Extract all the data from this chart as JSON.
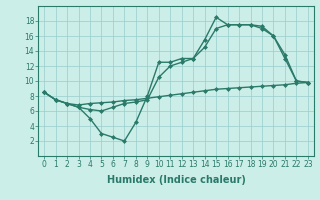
{
  "line1_x": [
    0,
    1,
    2,
    3,
    4,
    5,
    6,
    7,
    8,
    9,
    10,
    11,
    12,
    13,
    14,
    15,
    16,
    17,
    18,
    19,
    20,
    21,
    22,
    23
  ],
  "line1_y": [
    8.5,
    7.5,
    7.0,
    6.5,
    5.0,
    3.0,
    2.5,
    2.0,
    4.5,
    8.0,
    12.5,
    12.5,
    13.0,
    13.0,
    15.5,
    18.5,
    17.5,
    17.5,
    17.5,
    17.0,
    16.0,
    13.0,
    10.0,
    9.8
  ],
  "line2_x": [
    0,
    1,
    2,
    3,
    4,
    5,
    6,
    7,
    8,
    9,
    10,
    11,
    12,
    13,
    14,
    15,
    16,
    17,
    18,
    19,
    20,
    21,
    22,
    23
  ],
  "line2_y": [
    8.5,
    7.5,
    7.0,
    6.5,
    6.2,
    6.0,
    6.5,
    7.0,
    7.2,
    7.5,
    10.5,
    12.0,
    12.5,
    13.0,
    14.5,
    17.0,
    17.5,
    17.5,
    17.5,
    17.3,
    16.0,
    13.5,
    10.0,
    9.8
  ],
  "line3_x": [
    0,
    1,
    2,
    3,
    4,
    5,
    6,
    7,
    8,
    9,
    10,
    11,
    12,
    13,
    14,
    15,
    16,
    17,
    18,
    19,
    20,
    21,
    22,
    23
  ],
  "line3_y": [
    8.5,
    7.5,
    7.0,
    6.8,
    7.0,
    7.1,
    7.2,
    7.4,
    7.5,
    7.7,
    7.9,
    8.1,
    8.3,
    8.5,
    8.7,
    8.9,
    9.0,
    9.1,
    9.2,
    9.3,
    9.4,
    9.5,
    9.7,
    9.8
  ],
  "line_color": "#2a7a6a",
  "marker": "D",
  "marker_size": 2,
  "marker_linewidth": 0.5,
  "linewidth": 1.0,
  "bg_color": "#cceee8",
  "grid_color": "#99cccc",
  "xlabel": "Humidex (Indice chaleur)",
  "xlabel_fontsize": 7,
  "tick_fontsize": 5.5,
  "xlim": [
    -0.5,
    23.5
  ],
  "ylim": [
    0,
    20
  ],
  "yticks": [
    2,
    4,
    6,
    8,
    10,
    12,
    14,
    16,
    18
  ],
  "xticks": [
    0,
    1,
    2,
    3,
    4,
    5,
    6,
    7,
    8,
    9,
    10,
    11,
    12,
    13,
    14,
    15,
    16,
    17,
    18,
    19,
    20,
    21,
    22,
    23
  ]
}
